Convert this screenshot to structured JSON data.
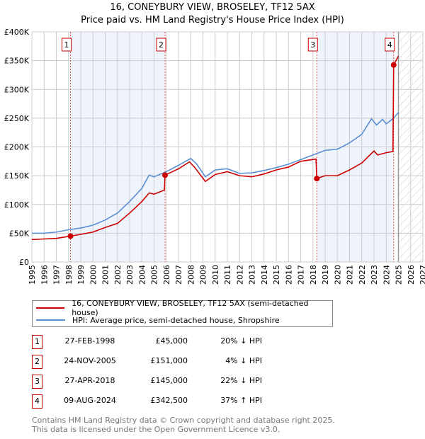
{
  "title": "16, CONEYBURY VIEW, BROSELEY, TF12 5AX",
  "subtitle": "Price paid vs. HM Land Registry's House Price Index (HPI)",
  "chart_data": {
    "type": "line",
    "title": "16, CONEYBURY VIEW, BROSELEY, TF12 5AX",
    "xlim": [
      1995,
      2027
    ],
    "ylim": [
      0,
      400000
    ],
    "x_ticks": [
      "1995",
      "1996",
      "1997",
      "1998",
      "1999",
      "2000",
      "2001",
      "2002",
      "2003",
      "2004",
      "2005",
      "2006",
      "2007",
      "2008",
      "2009",
      "2010",
      "2011",
      "2012",
      "2013",
      "2014",
      "2015",
      "2016",
      "2017",
      "2018",
      "2019",
      "2020",
      "2021",
      "2022",
      "2023",
      "2024",
      "2025",
      "2026",
      "2027"
    ],
    "y_ticks": [
      {
        "v": 0,
        "label": "£0"
      },
      {
        "v": 50000,
        "label": "£50K"
      },
      {
        "v": 100000,
        "label": "£100K"
      },
      {
        "v": 150000,
        "label": "£150K"
      },
      {
        "v": 200000,
        "label": "£200K"
      },
      {
        "v": 250000,
        "label": "£250K"
      },
      {
        "v": 300000,
        "label": "£300K"
      },
      {
        "v": 350000,
        "label": "£350K"
      },
      {
        "v": 400000,
        "label": "£400K"
      }
    ],
    "grid": true,
    "forecast_from": 2025.0,
    "series": [
      {
        "name": "16, CONEYBURY VIEW, BROSELEY, TF12 5AX (semi-detached house)",
        "color": "#cc0000",
        "x": [
          1995,
          1996,
          1997,
          1998.15,
          1999,
          2000,
          2001,
          2002,
          2003,
          2004,
          2004.6,
          2005,
          2005.85,
          2005.9,
          2006.5,
          2007,
          2007.9,
          2008.3,
          2009.2,
          2010,
          2011,
          2012,
          2013,
          2014,
          2015,
          2016,
          2017,
          2018.25,
          2018.32,
          2019,
          2020,
          2021,
          2022,
          2023,
          2023.3,
          2024,
          2024.55,
          2024.61,
          2025
        ],
        "y": [
          39000,
          40000,
          41000,
          45000,
          48000,
          52000,
          60000,
          67000,
          85000,
          105000,
          120000,
          118000,
          125000,
          151000,
          157000,
          162000,
          174000,
          165000,
          140000,
          152000,
          157000,
          150000,
          148000,
          153000,
          160000,
          165000,
          175000,
          179000,
          145000,
          150000,
          150000,
          160000,
          172000,
          193000,
          186000,
          190000,
          192000,
          342500,
          358000
        ]
      },
      {
        "name": "HPI: Average price, semi-detached house, Shropshire",
        "color": "#5b8fd4",
        "x": [
          1995,
          1996,
          1997,
          1998,
          1999,
          2000,
          2001,
          2002,
          2003,
          2004,
          2004.6,
          2005,
          2006,
          2007,
          2008,
          2008.5,
          2009.2,
          2010,
          2011,
          2012,
          2013,
          2014,
          2015,
          2016,
          2017,
          2018,
          2019,
          2020,
          2021,
          2022,
          2022.8,
          2023.2,
          2023.7,
          2024,
          2024.6,
          2025
        ],
        "y": [
          50000,
          50000,
          52000,
          56000,
          59000,
          64000,
          73000,
          85000,
          105000,
          128000,
          151000,
          148000,
          157000,
          168000,
          180000,
          170000,
          148000,
          160000,
          162000,
          154000,
          155000,
          159000,
          164000,
          170000,
          178000,
          186000,
          194000,
          196000,
          207000,
          222000,
          249000,
          238000,
          248000,
          240000,
          250000,
          260000
        ]
      }
    ],
    "sales": [
      {
        "n": "1",
        "x": 1998.16,
        "price": 45000,
        "date": "27-FEB-1998",
        "price_label": "£45,000",
        "hpi": "20% ↓ HPI"
      },
      {
        "n": "2",
        "x": 2005.9,
        "price": 151000,
        "date": "24-NOV-2005",
        "price_label": "£151,000",
        "hpi": "4% ↓ HPI"
      },
      {
        "n": "3",
        "x": 2018.32,
        "price": 145000,
        "date": "27-APR-2018",
        "price_label": "£145,000",
        "hpi": "22% ↓ HPI"
      },
      {
        "n": "4",
        "x": 2024.61,
        "price": 342500,
        "date": "09-AUG-2024",
        "price_label": "£342,500",
        "hpi": "37% ↑ HPI"
      }
    ]
  },
  "footer": [
    "Contains HM Land Registry data © Crown copyright and database right 2025.",
    "This data is licensed under the Open Government Licence v3.0."
  ]
}
